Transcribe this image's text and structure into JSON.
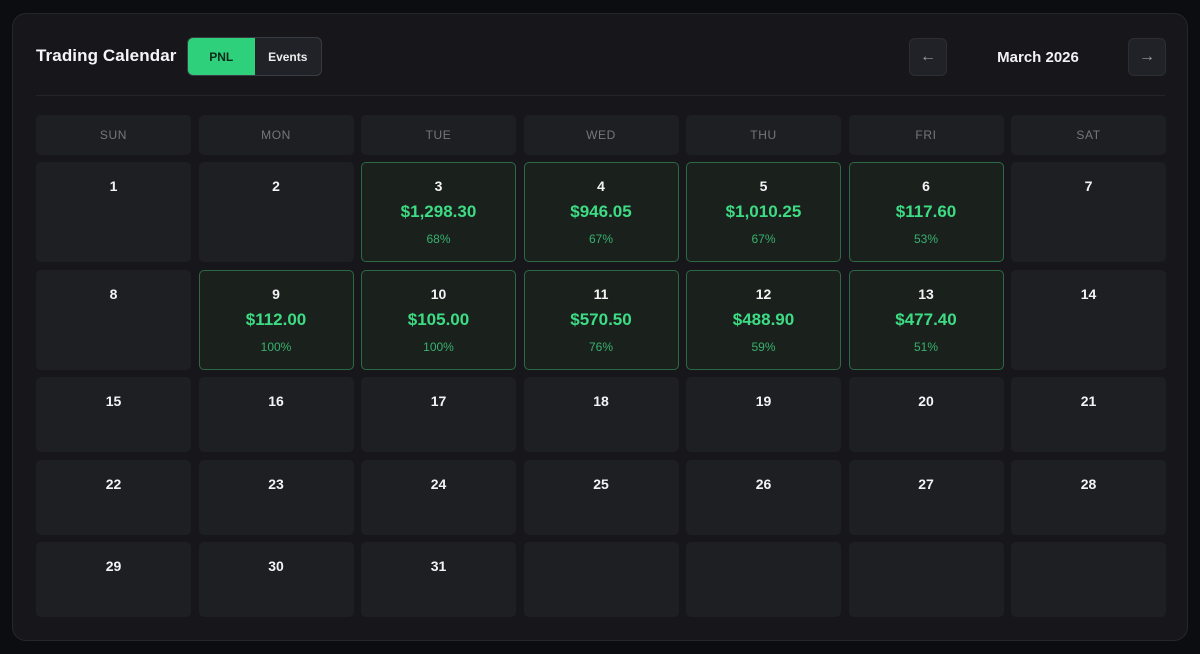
{
  "header": {
    "title": "Trading Calendar",
    "toggle": {
      "pnl_label": "PNL",
      "events_label": "Events",
      "active": "PNL"
    },
    "month": "March 2026",
    "prev_icon": "←",
    "next_icon": "→"
  },
  "weekdays": [
    "SUN",
    "MON",
    "TUE",
    "WED",
    "THU",
    "FRI",
    "SAT"
  ],
  "colors": {
    "accent": "#2fd07b",
    "profit_text": "#3ddc84",
    "profit_border": "#2a6b45"
  },
  "days": [
    {
      "day": "1"
    },
    {
      "day": "2"
    },
    {
      "day": "3",
      "pnl": "$1,298.30",
      "pct": "68%"
    },
    {
      "day": "4",
      "pnl": "$946.05",
      "pct": "67%"
    },
    {
      "day": "5",
      "pnl": "$1,010.25",
      "pct": "67%"
    },
    {
      "day": "6",
      "pnl": "$117.60",
      "pct": "53%"
    },
    {
      "day": "7"
    },
    {
      "day": "8"
    },
    {
      "day": "9",
      "pnl": "$112.00",
      "pct": "100%"
    },
    {
      "day": "10",
      "pnl": "$105.00",
      "pct": "100%"
    },
    {
      "day": "11",
      "pnl": "$570.50",
      "pct": "76%"
    },
    {
      "day": "12",
      "pnl": "$488.90",
      "pct": "59%"
    },
    {
      "day": "13",
      "pnl": "$477.40",
      "pct": "51%"
    },
    {
      "day": "14"
    },
    {
      "day": "15"
    },
    {
      "day": "16"
    },
    {
      "day": "17"
    },
    {
      "day": "18"
    },
    {
      "day": "19"
    },
    {
      "day": "20"
    },
    {
      "day": "21"
    },
    {
      "day": "22"
    },
    {
      "day": "23"
    },
    {
      "day": "24"
    },
    {
      "day": "25"
    },
    {
      "day": "26"
    },
    {
      "day": "27"
    },
    {
      "day": "28"
    },
    {
      "day": "29"
    },
    {
      "day": "30"
    },
    {
      "day": "31"
    },
    {
      "day": ""
    },
    {
      "day": ""
    },
    {
      "day": ""
    },
    {
      "day": ""
    }
  ]
}
